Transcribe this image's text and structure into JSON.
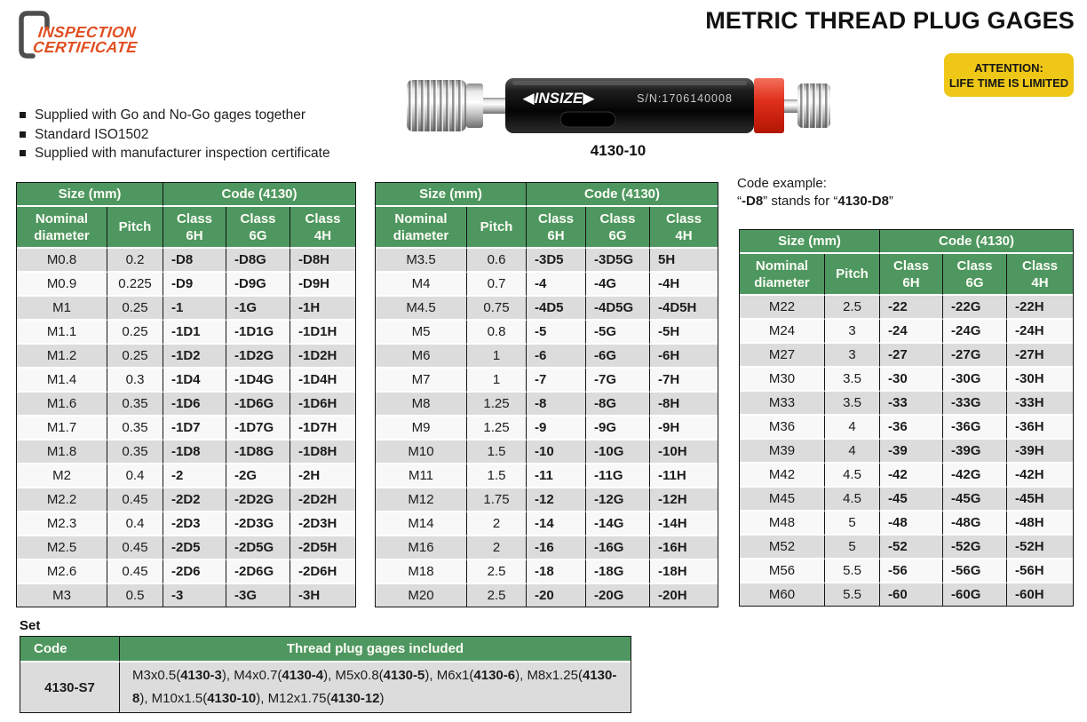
{
  "header": {
    "title": "METRIC THREAD PLUG GAGES"
  },
  "logo": {
    "line1": "INSPECTION",
    "line2": "CERTIFICATE"
  },
  "attention": {
    "line1": "ATTENTION:",
    "line2": "LIFE TIME IS LIMITED"
  },
  "product": {
    "brand_display": "◀INSIZE▶",
    "serial": "S/N:1706140008",
    "caption": "4130-10"
  },
  "features": [
    "Supplied with Go and No-Go gages together",
    "Standard ISO1502",
    "Supplied with manufacturer inspection certificate"
  ],
  "code_example": {
    "intro": "Code example:",
    "parts": [
      {
        "text": "“",
        "bold": false
      },
      {
        "text": "-D8",
        "bold": true
      },
      {
        "text": "” stands for “",
        "bold": false
      },
      {
        "text": "4130-D8",
        "bold": true
      },
      {
        "text": "”",
        "bold": false
      }
    ]
  },
  "tables": {
    "group_size": "Size (mm)",
    "group_code": "Code (4130)",
    "columns": [
      "Nominal\ndiameter",
      "Pitch",
      "Class\n6H",
      "Class\n6G",
      "Class\n4H"
    ],
    "t1": {
      "rows": [
        [
          "M0.8",
          "0.2",
          "-D8",
          "-D8G",
          "-D8H"
        ],
        [
          "M0.9",
          "0.225",
          "-D9",
          "-D9G",
          "-D9H"
        ],
        [
          "M1",
          "0.25",
          "-1",
          "-1G",
          "-1H"
        ],
        [
          "M1.1",
          "0.25",
          "-1D1",
          "-1D1G",
          "-1D1H"
        ],
        [
          "M1.2",
          "0.25",
          "-1D2",
          "-1D2G",
          "-1D2H"
        ],
        [
          "M1.4",
          "0.3",
          "-1D4",
          "-1D4G",
          "-1D4H"
        ],
        [
          "M1.6",
          "0.35",
          "-1D6",
          "-1D6G",
          "-1D6H"
        ],
        [
          "M1.7",
          "0.35",
          "-1D7",
          "-1D7G",
          "-1D7H"
        ],
        [
          "M1.8",
          "0.35",
          "-1D8",
          "-1D8G",
          "-1D8H"
        ],
        [
          "M2",
          "0.4",
          "-2",
          "-2G",
          "-2H"
        ],
        [
          "M2.2",
          "0.45",
          "-2D2",
          "-2D2G",
          "-2D2H"
        ],
        [
          "M2.3",
          "0.4",
          "-2D3",
          "-2D3G",
          "-2D3H"
        ],
        [
          "M2.5",
          "0.45",
          "-2D5",
          "-2D5G",
          "-2D5H"
        ],
        [
          "M2.6",
          "0.45",
          "-2D6",
          "-2D6G",
          "-2D6H"
        ],
        [
          "M3",
          "0.5",
          "-3",
          "-3G",
          "-3H"
        ]
      ]
    },
    "t2": {
      "rows": [
        [
          "M3.5",
          "0.6",
          "-3D5",
          "-3D5G",
          "5H"
        ],
        [
          "M4",
          "0.7",
          "-4",
          "-4G",
          "-4H"
        ],
        [
          "M4.5",
          "0.75",
          "-4D5",
          "-4D5G",
          "-4D5H"
        ],
        [
          "M5",
          "0.8",
          "-5",
          "-5G",
          "-5H"
        ],
        [
          "M6",
          "1",
          "-6",
          "-6G",
          "-6H"
        ],
        [
          "M7",
          "1",
          "-7",
          "-7G",
          "-7H"
        ],
        [
          "M8",
          "1.25",
          "-8",
          "-8G",
          "-8H"
        ],
        [
          "M9",
          "1.25",
          "-9",
          "-9G",
          "-9H"
        ],
        [
          "M10",
          "1.5",
          "-10",
          "-10G",
          "-10H"
        ],
        [
          "M11",
          "1.5",
          "-11",
          "-11G",
          "-11H"
        ],
        [
          "M12",
          "1.75",
          "-12",
          "-12G",
          "-12H"
        ],
        [
          "M14",
          "2",
          "-14",
          "-14G",
          "-14H"
        ],
        [
          "M16",
          "2",
          "-16",
          "-16G",
          "-16H"
        ],
        [
          "M18",
          "2.5",
          "-18",
          "-18G",
          "-18H"
        ],
        [
          "M20",
          "2.5",
          "-20",
          "-20G",
          "-20H"
        ]
      ]
    },
    "t3": {
      "rows": [
        [
          "M22",
          "2.5",
          "-22",
          "-22G",
          "-22H"
        ],
        [
          "M24",
          "3",
          "-24",
          "-24G",
          "-24H"
        ],
        [
          "M27",
          "3",
          "-27",
          "-27G",
          "-27H"
        ],
        [
          "M30",
          "3.5",
          "-30",
          "-30G",
          "-30H"
        ],
        [
          "M33",
          "3.5",
          "-33",
          "-33G",
          "-33H"
        ],
        [
          "M36",
          "4",
          "-36",
          "-36G",
          "-36H"
        ],
        [
          "M39",
          "4",
          "-39",
          "-39G",
          "-39H"
        ],
        [
          "M42",
          "4.5",
          "-42",
          "-42G",
          "-42H"
        ],
        [
          "M45",
          "4.5",
          "-45",
          "-45G",
          "-45H"
        ],
        [
          "M48",
          "5",
          "-48",
          "-48G",
          "-48H"
        ],
        [
          "M52",
          "5",
          "-52",
          "-52G",
          "-52H"
        ],
        [
          "M56",
          "5.5",
          "-56",
          "-56G",
          "-56H"
        ],
        [
          "M60",
          "5.5",
          "-60",
          "-60G",
          "-60H"
        ]
      ]
    }
  },
  "set": {
    "label": "Set",
    "col_code": "Code",
    "col_included": "Thread plug gages included",
    "code": "4130-S7",
    "items_parts": [
      {
        "text": "M3x0.5(",
        "bold": false
      },
      {
        "text": "4130-3",
        "bold": true
      },
      {
        "text": "), M4x0.7(",
        "bold": false
      },
      {
        "text": "4130-4",
        "bold": true
      },
      {
        "text": "), M5x0.8(",
        "bold": false
      },
      {
        "text": "4130-5",
        "bold": true
      },
      {
        "text": "), M6x1(",
        "bold": false
      },
      {
        "text": "4130-6",
        "bold": true
      },
      {
        "text": "), M8x1.25(",
        "bold": false
      },
      {
        "text": "4130-8",
        "bold": true
      },
      {
        "text": "), M10x1.5(",
        "bold": false
      },
      {
        "text": "4130-10",
        "bold": true
      },
      {
        "text": "), M12x1.75(",
        "bold": false
      },
      {
        "text": "4130-12",
        "bold": true
      },
      {
        "text": ")",
        "bold": false
      }
    ]
  },
  "colors": {
    "header_green": "#4e9760",
    "row_gray": "#dcdcdc",
    "accent_orange": "#e14f22",
    "attention_yellow": "#eec717",
    "red_band": "#d81e04"
  }
}
